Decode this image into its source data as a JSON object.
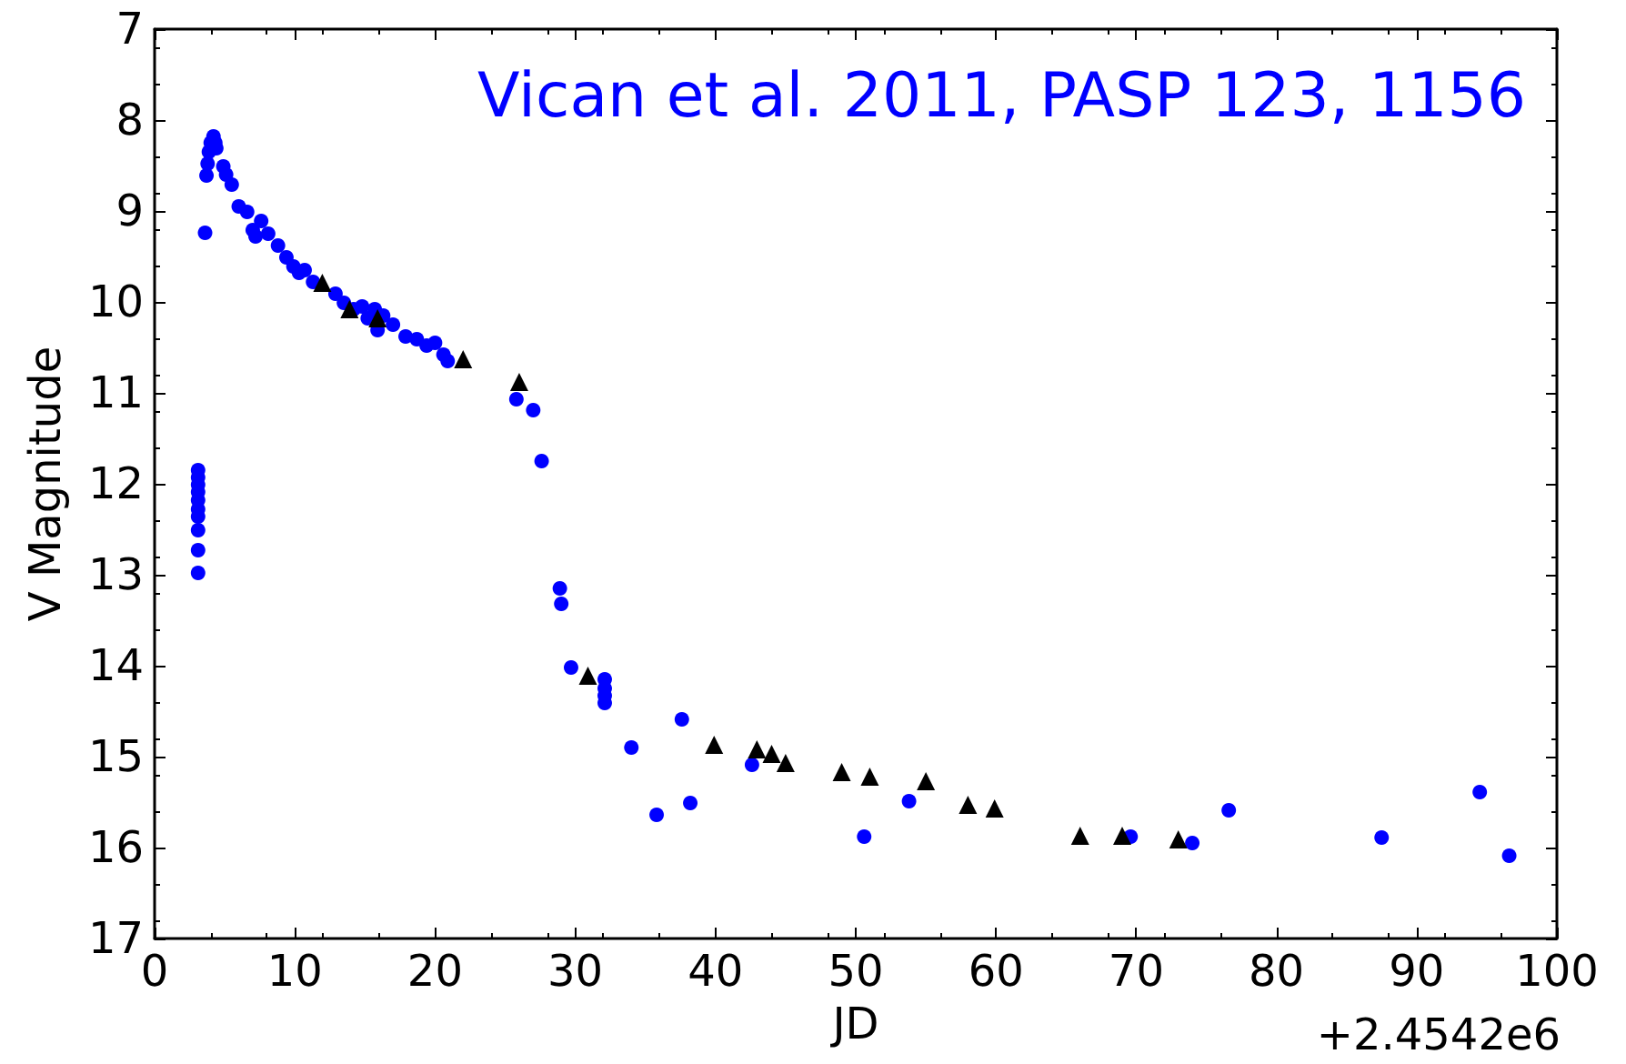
{
  "chart_data": {
    "type": "scatter",
    "xlabel": "JD",
    "ylabel": "V Magnitude",
    "annotations": [
      "Vican et al. 2011, PASP 123, 1156",
      "+2.4542e6"
    ],
    "xlim": [
      0,
      100
    ],
    "xticks": [
      0,
      10,
      20,
      30,
      40,
      50,
      60,
      70,
      80,
      90,
      100
    ],
    "ylim": [
      17,
      7
    ],
    "yticks": [
      7,
      8,
      9,
      10,
      11,
      12,
      13,
      14,
      15,
      16,
      17
    ],
    "grid": false,
    "series": [
      {
        "color": "#0000ff",
        "marker": "circle",
        "x": [
          3.1,
          3.1,
          3.1,
          3.1,
          3.1,
          3.1,
          3.1,
          3.1,
          3.1,
          3.1,
          3.6,
          3.7,
          3.78,
          3.87,
          4.0,
          4.2,
          4.33,
          4.4,
          4.9,
          5.1,
          5.5,
          6.0,
          6.6,
          7.0,
          7.2,
          7.6,
          8.1,
          8.8,
          9.4,
          9.9,
          10.3,
          10.7,
          11.3,
          12.9,
          13.5,
          14.2,
          14.8,
          15.2,
          15.7,
          15.9,
          16.3,
          17.0,
          17.9,
          18.7,
          19.4,
          20.0,
          20.6,
          20.9,
          25.8,
          27.0,
          27.6,
          28.9,
          29.0,
          29.7,
          32.1,
          32.1,
          32.1,
          32.1,
          34.0,
          35.8,
          37.6,
          38.2,
          42.6,
          50.6,
          53.8,
          69.6,
          74.0,
          76.6,
          87.5,
          94.5,
          96.6
        ],
        "values": [
          11.85,
          11.93,
          12.01,
          12.09,
          12.18,
          12.28,
          12.36,
          12.51,
          12.73,
          12.98,
          9.24,
          8.61,
          8.48,
          8.35,
          8.25,
          8.18,
          8.25,
          8.31,
          8.51,
          8.6,
          8.71,
          8.95,
          9.01,
          9.21,
          9.28,
          9.11,
          9.25,
          9.38,
          9.51,
          9.61,
          9.68,
          9.65,
          9.78,
          9.91,
          10.01,
          10.08,
          10.05,
          10.18,
          10.08,
          10.31,
          10.15,
          10.25,
          10.38,
          10.41,
          10.48,
          10.45,
          10.58,
          10.65,
          11.07,
          11.19,
          11.75,
          13.15,
          13.32,
          14.02,
          14.15,
          14.25,
          14.33,
          14.41,
          14.9,
          15.64,
          14.59,
          15.51,
          15.09,
          15.88,
          15.49,
          15.88,
          15.95,
          15.59,
          15.89,
          15.39,
          16.09
        ]
      },
      {
        "color": "#000000",
        "marker": "triangle",
        "x": [
          11.96,
          13.9,
          15.9,
          22.0,
          26.0,
          30.9,
          39.9,
          42.95,
          44.0,
          45.0,
          49.0,
          51.0,
          55.0,
          58.0,
          59.9,
          66.0,
          69.0,
          73.0
        ],
        "values": [
          9.79,
          10.08,
          10.18,
          10.63,
          10.88,
          14.11,
          14.87,
          14.92,
          14.97,
          15.07,
          15.17,
          15.22,
          15.27,
          15.53,
          15.57,
          15.87,
          15.87,
          15.91
        ]
      }
    ]
  }
}
